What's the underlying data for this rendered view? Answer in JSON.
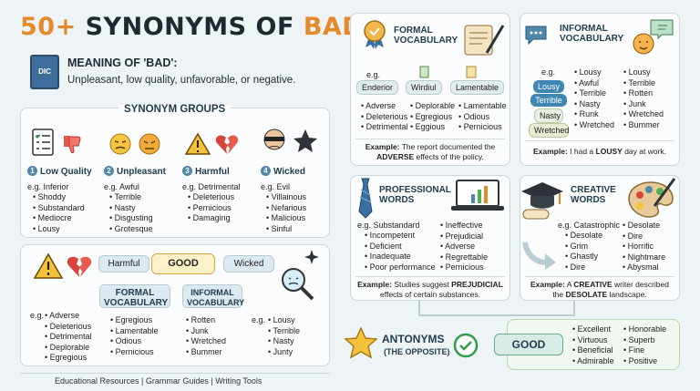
{
  "title": {
    "part1": "50+",
    "part2": " SYNONYMS OF ",
    "part3": "BAD"
  },
  "dict_badge": "DIC",
  "meaning": {
    "label": "MEANING OF 'BAD':",
    "text": "Unpleasant, low quality, unfavorable, or negative."
  },
  "synonym_groups": {
    "title": "SYNONYM GROUPS",
    "groups": [
      {
        "num": "1",
        "name": "Low Quality",
        "eg": "e.g. Inferior",
        "items": [
          "Shoddy",
          "Substandard",
          "Mediocre",
          "Lousy"
        ]
      },
      {
        "num": "2",
        "name": "Unpleasant",
        "eg": "e.g. Awful",
        "items": [
          "Terrible",
          "Nasty",
          "Disgusting",
          "Grotesque"
        ]
      },
      {
        "num": "3",
        "name": "Harmful",
        "eg": "e.g. Detrimental",
        "items": [
          "Deleterious",
          "Pernicious",
          "Damaging"
        ]
      },
      {
        "num": "4",
        "name": "Wicked",
        "eg": "e.g. Evil",
        "items": [
          "Villainous",
          "Nefarious",
          "Malicious",
          "Sinful"
        ]
      }
    ]
  },
  "map": {
    "harmful": "Harmful",
    "good": "GOOD",
    "wicked": "Wicked",
    "formal_label": "FORMAL VOCABULARY",
    "informal_label": "INFORMAL VOCABULARY",
    "left_eg": "e.g.",
    "left_items": [
      "Adverse",
      "Deleterious",
      "Detrimental",
      "Deplorable",
      "Egregious"
    ],
    "formal_items": [
      "Egregious",
      "Lamentable",
      "Odious",
      "Pernicious"
    ],
    "informal_items": [
      "Rotten",
      "Junk",
      "Wretched",
      "Bummer"
    ],
    "right_eg": "e.g.",
    "right_items": [
      "Lousy",
      "Terrible",
      "Nasty",
      "Junty"
    ]
  },
  "footer": "Educational Resources | Grammar Guides | Writing Tools",
  "formal": {
    "title": "FORMAL VOCABULARY",
    "eg": "e.g.",
    "tags": [
      "Enderior",
      "Wirdiul",
      "Lamentable"
    ],
    "col1": [
      "Adverse",
      "Deleterious",
      "Detrimental"
    ],
    "col2": [
      "Deplorable",
      "Egregious",
      "Eggious"
    ],
    "col3": [
      "Lamentable",
      "Odious",
      "Pernicious"
    ],
    "example_label": "Example:",
    "example_line1": "The report documented the",
    "example_bold": "ADVERSE",
    "example_line2": "effects of the policy."
  },
  "informal": {
    "title": "INFORMAL VOCABULARY",
    "eg": "e.g.",
    "tags": [
      "Lousy",
      "Terrible",
      "Nasty",
      "Wretched"
    ],
    "col1": [
      "Lousy",
      "Awful",
      "Terrible",
      "Nasty",
      "Runk",
      "Wretched"
    ],
    "col2": [
      "Lousy",
      "Terrible",
      "Rotten",
      "Junk",
      "Wretched",
      "Bummer"
    ],
    "example_label": "Example:",
    "example_pre": "I had a",
    "example_bold": "LOUSY",
    "example_post": "day at work."
  },
  "professional": {
    "title": "PROFESSIONAL WORDS",
    "eg": "e.g. Substandard",
    "col1": [
      "Incompetent",
      "Deficient",
      "Inadequate",
      "Poor performance"
    ],
    "col2": [
      "Ineffective",
      "Prejudicial",
      "Adverse",
      "Regrettable",
      "Pernicious"
    ],
    "example_label": "Example:",
    "example_pre": "Studies suggest",
    "example_bold": "PREJUDICIAL",
    "example_line2": "effects of certain substances."
  },
  "creative": {
    "title": "CREATIVE WORDS",
    "eg": "e.g. Catastrophic",
    "col1": [
      "Desolate",
      "Grim",
      "Ghastly",
      "Dire"
    ],
    "col2": [
      "Desolate",
      "Dire",
      "Horrific",
      "Nightmare",
      "Abysmal"
    ],
    "example_label": "Example:",
    "example_pre": "A",
    "example_bold": "CREATIVE",
    "example_post": "writer described",
    "example_line2_pre": "the",
    "example_bold2": "DESOLATE",
    "example_line2_post": "landscape."
  },
  "antonyms": {
    "title": "ANTONYMS",
    "subtitle": "(THE OPPOSITE)",
    "good": "GOOD",
    "col1": [
      "Excellent",
      "Virtuous",
      "Beneficial",
      "Admirable"
    ],
    "col2": [
      "Honorable",
      "Superb",
      "Fine",
      "Positive"
    ]
  },
  "colors": {
    "accent": "#e58a2c",
    "blue": "#4f88a8",
    "green": "#4caf50",
    "dark": "#1f2a30"
  }
}
